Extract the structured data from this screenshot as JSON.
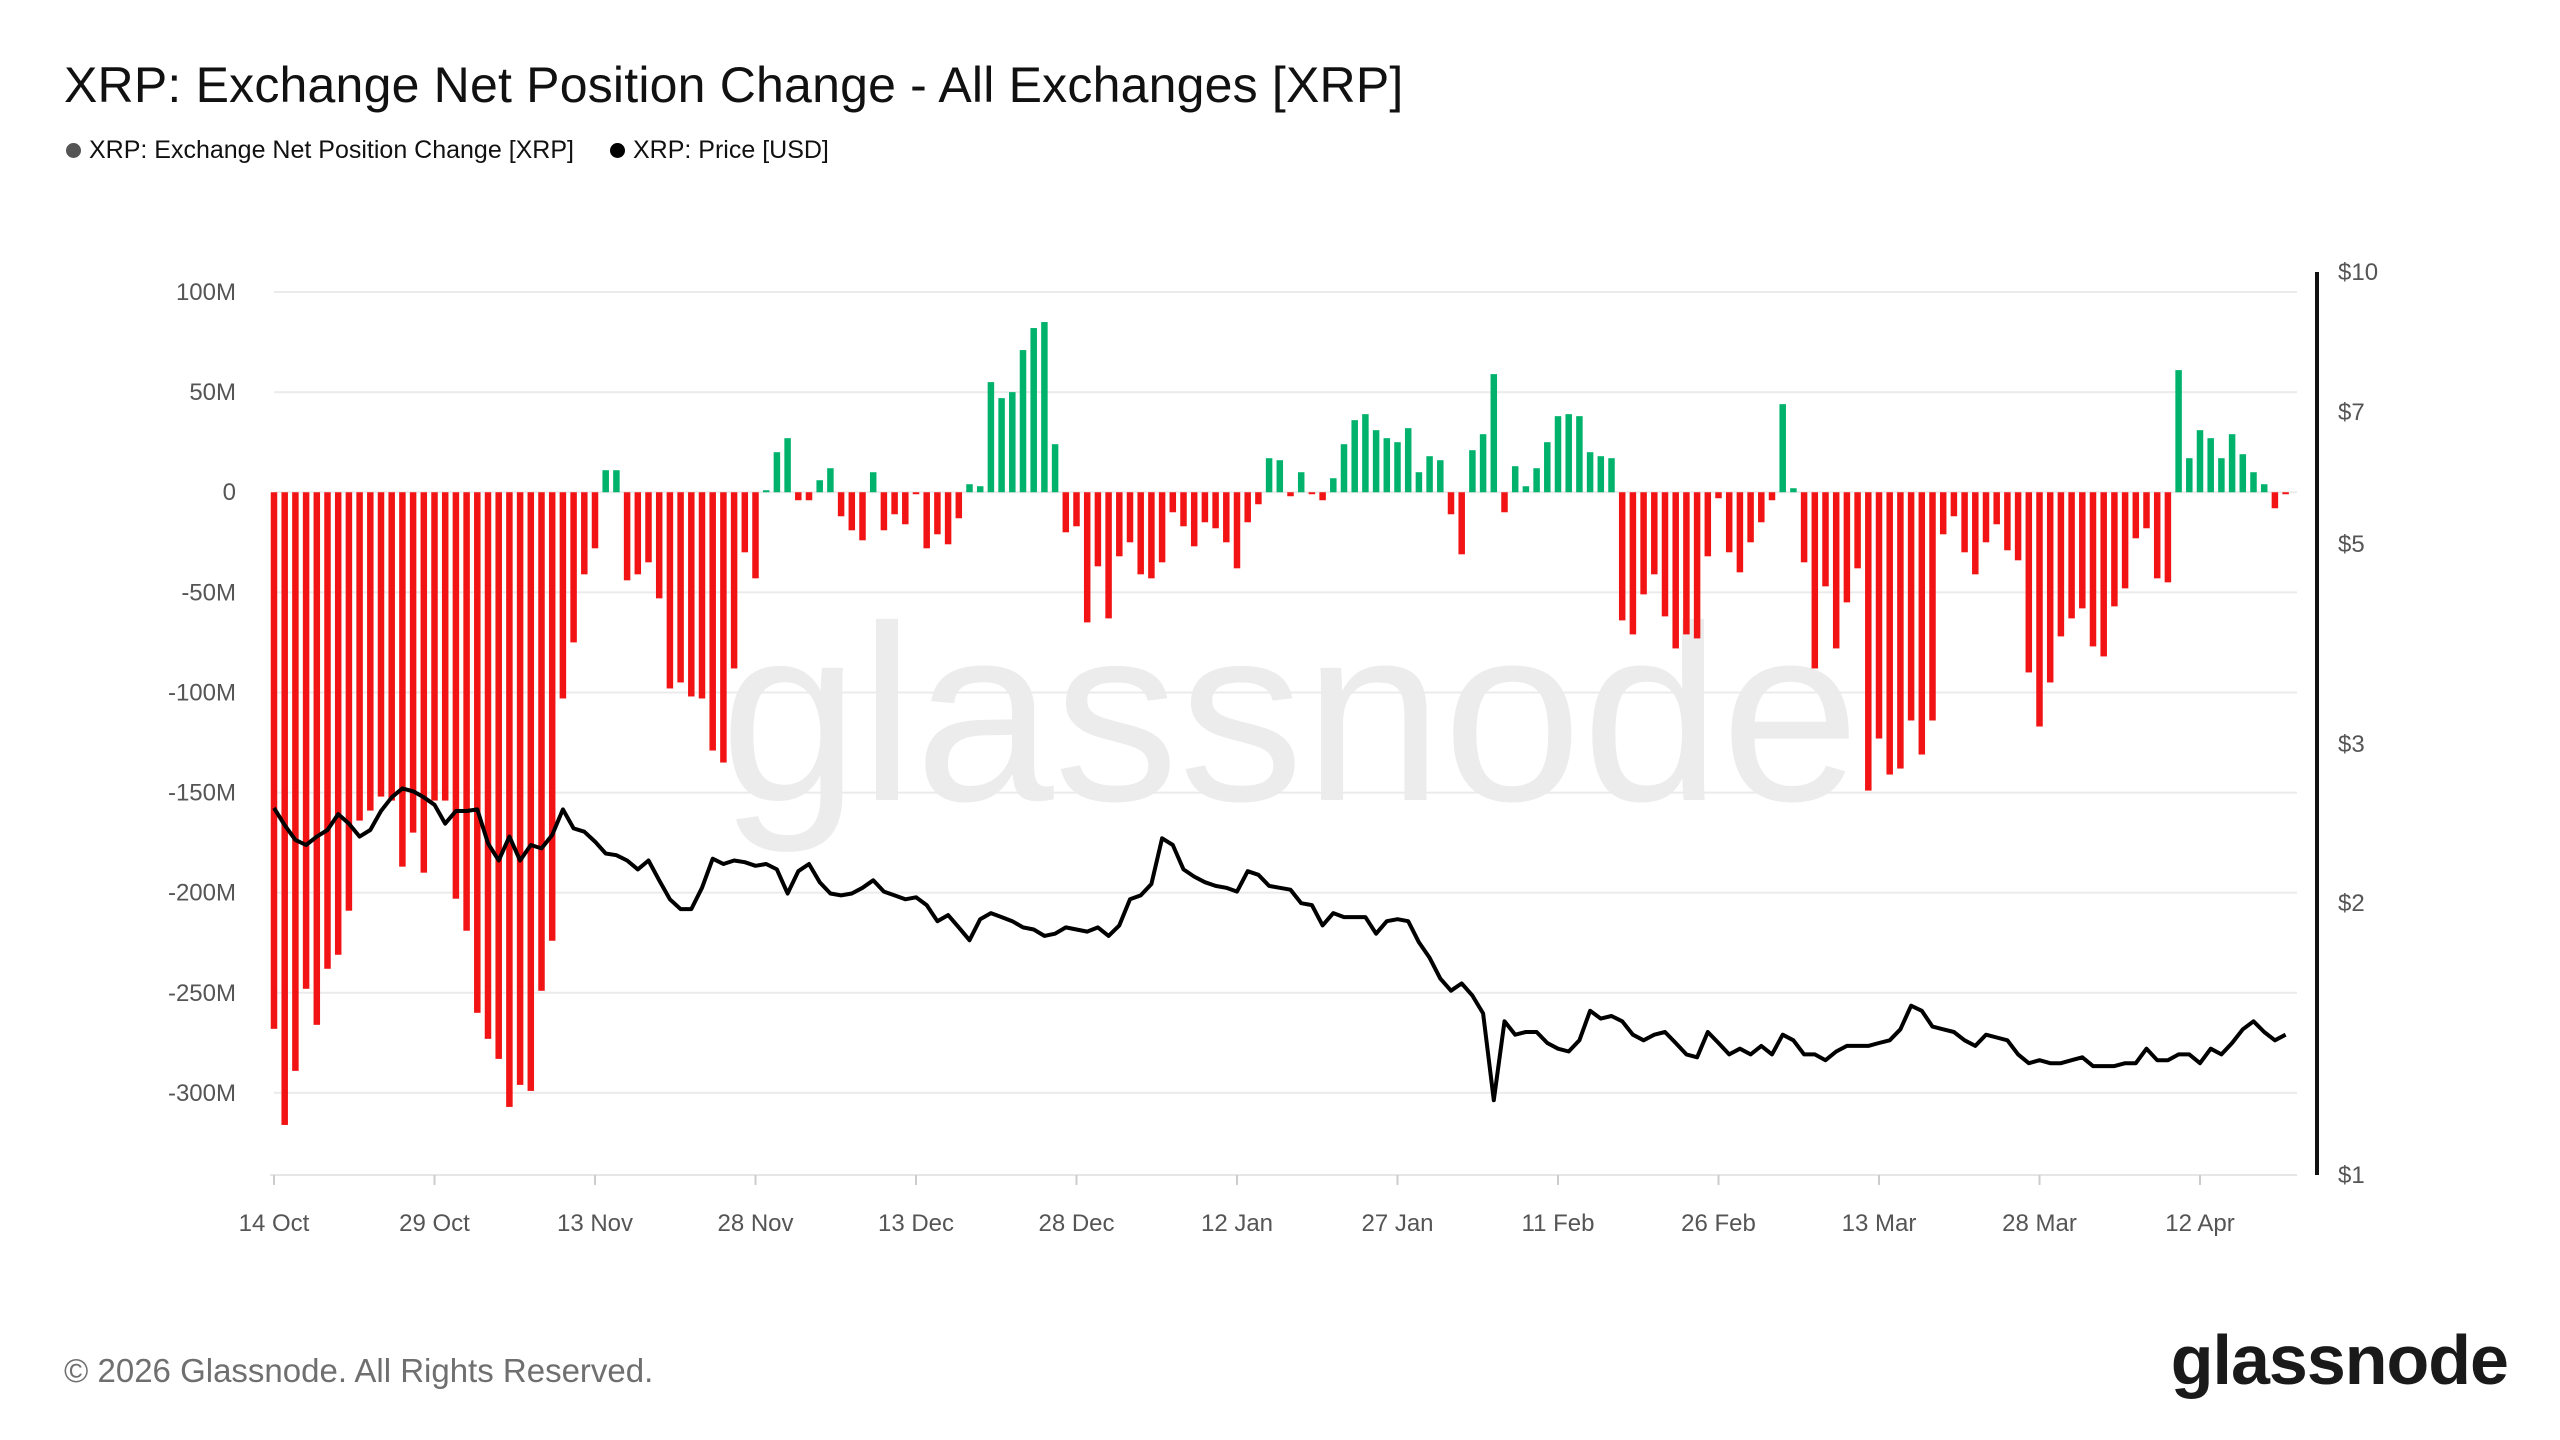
{
  "title": "XRP: Exchange Net Position Change - All Exchanges [XRP]",
  "legend": [
    {
      "label": "XRP: Exchange Net Position Change [XRP]",
      "color": "#555555"
    },
    {
      "label": "XRP: Price [USD]",
      "color": "#000000"
    }
  ],
  "footer": "© 2026 Glassnode. All Rights Reserved.",
  "logo": "glassnode",
  "watermark": "glassnode",
  "colors": {
    "positive": "#00b26b",
    "negative": "#f21414",
    "price_line": "#000000",
    "grid": "#ebebeb"
  },
  "chart_data": {
    "type": "bar",
    "start_date": "14 Oct",
    "x_tick_labels": [
      "14 Oct",
      "29 Oct",
      "13 Nov",
      "28 Nov",
      "13 Dec",
      "28 Dec",
      "12 Jan",
      "27 Jan",
      "11 Feb",
      "26 Feb",
      "13 Mar",
      "28 Mar",
      "12 Apr"
    ],
    "x_tick_interval_days": 15,
    "left_axis": {
      "ticks": [
        100,
        50,
        0,
        -50,
        -100,
        -150,
        -200,
        -250,
        -300
      ],
      "tick_labels": [
        "100M",
        "50M",
        "0",
        "-50M",
        "-100M",
        "-150M",
        "-200M",
        "-250M",
        "-300M"
      ],
      "ylim": [
        -341,
        110
      ],
      "unit": "M XRP"
    },
    "right_axis": {
      "scale": "log",
      "ticks": [
        10,
        7,
        5,
        3,
        2,
        1
      ],
      "tick_labels": [
        "$10",
        "$7",
        "$5",
        "$3",
        "$2",
        "$1"
      ],
      "ylim": [
        1,
        10
      ]
    },
    "grid": true,
    "series": [
      {
        "name": "XRP: Exchange Net Position Change [XRP]",
        "type": "bar",
        "axis": "left",
        "unit": "M",
        "values": [
          -268,
          -316,
          -289,
          -248,
          -266,
          -238,
          -231,
          -209,
          -164,
          -159,
          -152,
          -154,
          -187,
          -170,
          -190,
          -154,
          -154,
          -203,
          -219,
          -260,
          -273,
          -283,
          -307,
          -296,
          -299,
          -249,
          -224,
          -103,
          -75,
          -41,
          -28,
          11,
          11,
          -44,
          -41,
          -35,
          -53,
          -98,
          -95,
          -102,
          -103,
          -129,
          -135,
          -88,
          -30,
          -43,
          1,
          20,
          27,
          -4,
          -4,
          6,
          12,
          -12,
          -19,
          -24,
          10,
          -19,
          -11,
          -16,
          -1,
          -28,
          -21,
          -26,
          -13,
          4,
          3,
          55,
          47,
          50,
          71,
          82,
          85,
          24,
          -20,
          -17,
          -65,
          -37,
          -63,
          -32,
          -25,
          -41,
          -43,
          -35,
          -10,
          -17,
          -27,
          -15,
          -18,
          -25,
          -38,
          -15,
          -6,
          17,
          16,
          -2,
          10,
          -1,
          -4,
          7,
          24,
          36,
          39,
          31,
          27,
          25,
          32,
          10,
          18,
          16,
          -11,
          -31,
          21,
          29,
          59,
          -10,
          13,
          3,
          12,
          25,
          38,
          39,
          38,
          20,
          18,
          17,
          -64,
          -71,
          -51,
          -41,
          -62,
          -78,
          -71,
          -73,
          -32,
          -3,
          -30,
          -40,
          -25,
          -15,
          -4,
          44,
          2,
          -35,
          -88,
          -47,
          -78,
          -55,
          -38,
          -149,
          -123,
          -141,
          -138,
          -114,
          -131,
          -114,
          -21,
          -12,
          -30,
          -41,
          -25,
          -16,
          -29,
          -34,
          -90,
          -117,
          -95,
          -72,
          -63,
          -58,
          -77,
          -82,
          -57,
          -48,
          -23,
          -18,
          -43,
          -45,
          61,
          17,
          31,
          27,
          17,
          29,
          19,
          10,
          4,
          -8,
          -1
        ]
      },
      {
        "name": "XRP: Price [USD]",
        "type": "line",
        "axis": "right",
        "unit": "USD",
        "values": [
          2.55,
          2.44,
          2.35,
          2.32,
          2.37,
          2.41,
          2.51,
          2.45,
          2.37,
          2.41,
          2.53,
          2.62,
          2.68,
          2.66,
          2.62,
          2.57,
          2.45,
          2.53,
          2.53,
          2.54,
          2.33,
          2.23,
          2.37,
          2.23,
          2.32,
          2.3,
          2.38,
          2.54,
          2.42,
          2.4,
          2.34,
          2.27,
          2.26,
          2.23,
          2.18,
          2.23,
          2.12,
          2.02,
          1.97,
          1.97,
          2.08,
          2.24,
          2.21,
          2.23,
          2.22,
          2.2,
          2.21,
          2.18,
          2.05,
          2.17,
          2.21,
          2.11,
          2.05,
          2.04,
          2.05,
          2.08,
          2.12,
          2.06,
          2.04,
          2.02,
          2.03,
          1.99,
          1.91,
          1.94,
          1.88,
          1.82,
          1.92,
          1.95,
          1.93,
          1.91,
          1.88,
          1.87,
          1.84,
          1.85,
          1.88,
          1.87,
          1.86,
          1.88,
          1.84,
          1.89,
          2.02,
          2.04,
          2.1,
          2.36,
          2.32,
          2.18,
          2.14,
          2.11,
          2.09,
          2.08,
          2.06,
          2.17,
          2.15,
          2.09,
          2.08,
          2.07,
          2.0,
          1.99,
          1.89,
          1.95,
          1.93,
          1.93,
          1.93,
          1.85,
          1.91,
          1.92,
          1.91,
          1.81,
          1.74,
          1.65,
          1.6,
          1.63,
          1.58,
          1.51,
          1.21,
          1.48,
          1.43,
          1.44,
          1.44,
          1.4,
          1.38,
          1.37,
          1.41,
          1.52,
          1.49,
          1.5,
          1.48,
          1.43,
          1.41,
          1.43,
          1.44,
          1.4,
          1.36,
          1.35,
          1.44,
          1.4,
          1.36,
          1.38,
          1.36,
          1.39,
          1.36,
          1.43,
          1.41,
          1.36,
          1.36,
          1.34,
          1.37,
          1.39,
          1.39,
          1.39,
          1.4,
          1.41,
          1.45,
          1.54,
          1.52,
          1.46,
          1.45,
          1.44,
          1.41,
          1.39,
          1.43,
          1.42,
          1.41,
          1.36,
          1.33,
          1.34,
          1.33,
          1.33,
          1.34,
          1.35,
          1.32,
          1.32,
          1.32,
          1.33,
          1.33,
          1.38,
          1.34,
          1.34,
          1.36,
          1.36,
          1.33,
          1.38,
          1.36,
          1.4,
          1.45,
          1.48,
          1.44,
          1.41,
          1.43
        ]
      }
    ]
  }
}
